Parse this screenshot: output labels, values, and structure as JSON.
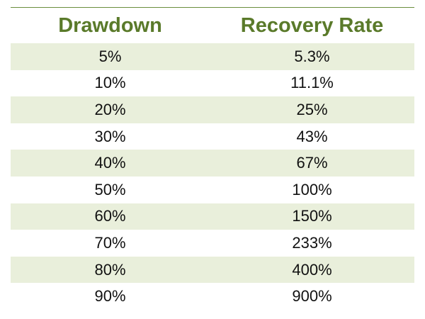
{
  "chart_data": {
    "type": "table",
    "columns": [
      "Drawdown",
      "Recovery Rate"
    ],
    "rows": [
      [
        "5%",
        "5.3%"
      ],
      [
        "10%",
        "11.1%"
      ],
      [
        "20%",
        "25%"
      ],
      [
        "30%",
        "43%"
      ],
      [
        "40%",
        "67%"
      ],
      [
        "50%",
        "100%"
      ],
      [
        "60%",
        "150%"
      ],
      [
        "70%",
        "233%"
      ],
      [
        "80%",
        "400%"
      ],
      [
        "90%",
        "900%"
      ]
    ]
  },
  "colors": {
    "header_text": "#5a7a2a",
    "band": "#e9efdb",
    "rule": "#6b8e3d"
  }
}
